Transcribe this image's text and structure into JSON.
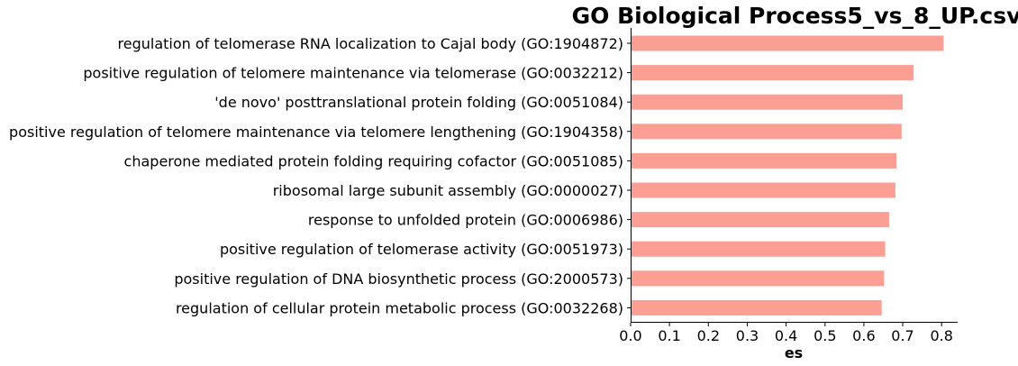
{
  "chart_data": {
    "type": "bar",
    "orientation": "horizontal",
    "title": "GO Biological Process5_vs_8_UP.csv",
    "xlabel": "es",
    "ylabel": "",
    "xlim": [
      0,
      0.84
    ],
    "xticks": [
      "0.0",
      "0.1",
      "0.2",
      "0.3",
      "0.4",
      "0.5",
      "0.6",
      "0.7",
      "0.8"
    ],
    "bar_color": "#fb9f95",
    "grid": false,
    "legend": "none",
    "categories": [
      "regulation of telomerase RNA localization to Cajal body (GO:1904872)",
      "positive regulation of telomere maintenance via telomerase (GO:0032212)",
      "'de novo' posttranslational protein folding (GO:0051084)",
      "positive regulation of telomere maintenance via telomere lengthening (GO:1904358)",
      "chaperone mediated protein folding requiring cofactor (GO:0051085)",
      "ribosomal large subunit assembly (GO:0000027)",
      "response to unfolded protein (GO:0006986)",
      "positive regulation of telomerase activity (GO:0051973)",
      "positive regulation of DNA biosynthetic process (GO:2000573)",
      "regulation of cellular protein metabolic process (GO:0032268)"
    ],
    "values": [
      0.805,
      0.728,
      0.7,
      0.697,
      0.684,
      0.681,
      0.665,
      0.655,
      0.652,
      0.646
    ]
  }
}
